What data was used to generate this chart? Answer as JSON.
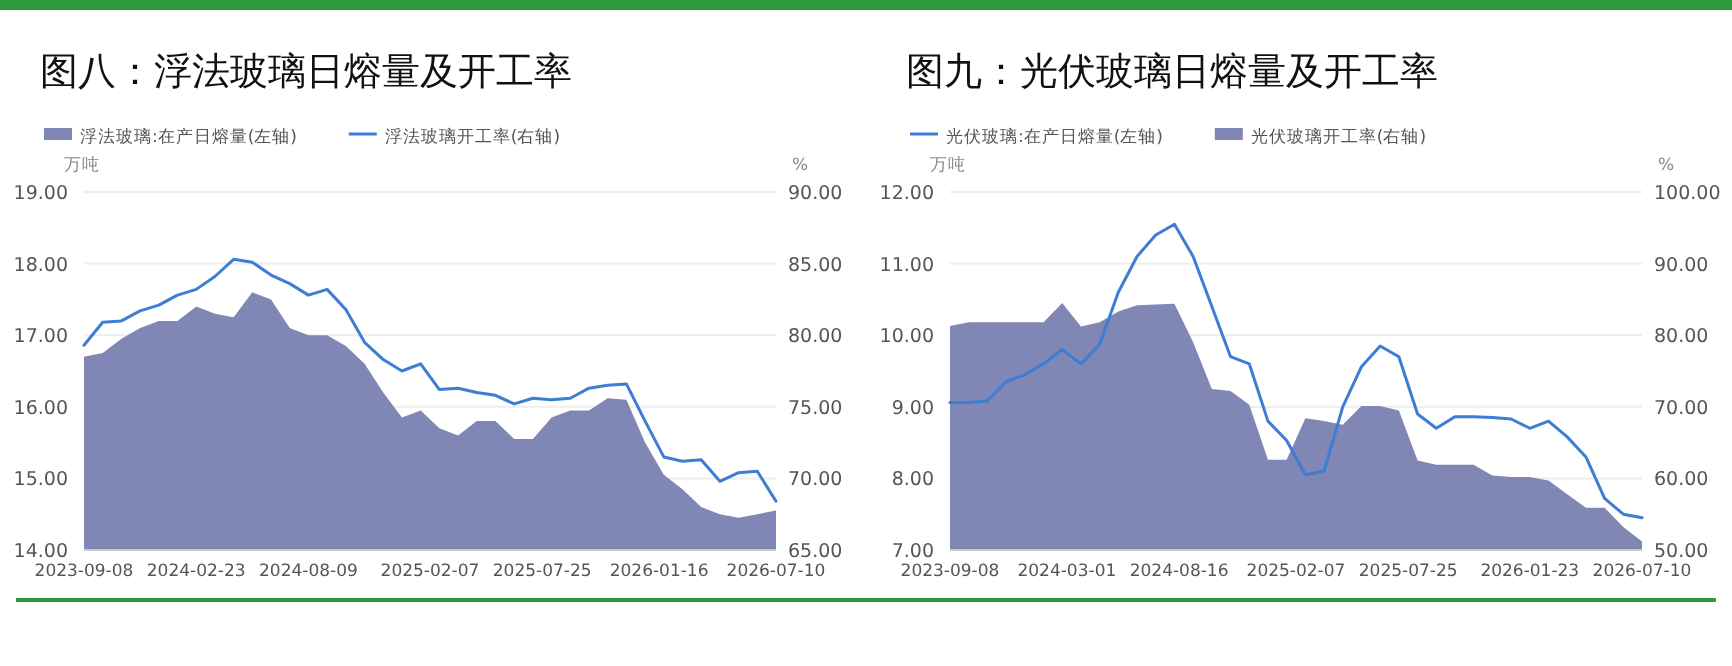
{
  "chart_data": [
    {
      "type": "area",
      "title": "图八：浮法玻璃日熔量及开工率",
      "ylabel": "万吨",
      "y2label": "%",
      "x": [
        "2023-09-08",
        "2023-10-06",
        "2023-11-03",
        "2023-12-01",
        "2023-12-29",
        "2024-01-26",
        "2024-02-23",
        "2024-03-22",
        "2024-04-19",
        "2024-05-17",
        "2024-06-14",
        "2024-07-12",
        "2024-08-09",
        "2024-09-06",
        "2024-10-04",
        "2024-11-01",
        "2024-11-29",
        "2024-12-27",
        "2025-01-24",
        "2025-02-21",
        "2025-03-21",
        "2025-04-18",
        "2025-05-16",
        "2025-06-13",
        "2025-07-11",
        "2025-08-08",
        "2025-09-05",
        "2025-10-03",
        "2025-10-31",
        "2025-11-28",
        "2025-12-26",
        "2026-01-23",
        "2026-02-20",
        "2026-03-20",
        "2026-04-17",
        "2026-05-15",
        "2026-06-12",
        "2026-07-10"
      ],
      "series": [
        {
          "name": "浮法玻璃:在产日熔量(左轴)",
          "axis": "y",
          "color": "#8087b5",
          "values": [
            16.7,
            16.75,
            16.95,
            17.1,
            17.2,
            17.2,
            17.4,
            17.3,
            17.25,
            17.6,
            17.5,
            17.1,
            17.0,
            17.0,
            16.85,
            16.6,
            16.2,
            15.85,
            15.95,
            15.7,
            15.6,
            15.8,
            15.8,
            15.55,
            15.55,
            15.85,
            15.95,
            15.95,
            16.12,
            16.1,
            15.5,
            15.05,
            14.85,
            14.6,
            14.5,
            14.45,
            14.5,
            14.55
          ]
        },
        {
          "name": "浮法玻璃开工率(右轴)",
          "type": "line",
          "axis": "y2",
          "color": "#3d7dd4",
          "values": [
            79.3,
            80.9,
            81.0,
            81.7,
            82.1,
            82.8,
            83.2,
            84.1,
            85.3,
            85.1,
            84.2,
            83.6,
            82.8,
            83.2,
            81.8,
            79.5,
            78.3,
            77.5,
            78.0,
            76.2,
            76.3,
            76.0,
            75.8,
            75.2,
            75.6,
            75.5,
            75.6,
            76.3,
            76.5,
            76.6,
            74.0,
            71.5,
            71.2,
            71.3,
            69.8,
            70.4,
            70.5,
            68.4
          ]
        }
      ],
      "xlim": [
        "2023-09-08",
        "2026-07-10"
      ],
      "xticks": [
        "2023-09-08",
        "2024-02-23",
        "2024-08-09",
        "2025-02-07",
        "2025-07-25",
        "2026-01-16",
        "2026-07-10"
      ],
      "ylim": [
        14,
        19
      ],
      "yticks": [
        {
          "value": 14,
          "label": "14.00"
        },
        {
          "value": 15,
          "label": "15.00"
        },
        {
          "value": 16,
          "label": "16.00"
        },
        {
          "value": 17,
          "label": "17.00"
        },
        {
          "value": 18,
          "label": "18.00"
        },
        {
          "value": 19,
          "label": "19.00"
        }
      ],
      "y2lim": [
        65,
        90
      ],
      "y2ticks": [
        {
          "value": 65,
          "label": "65.00"
        },
        {
          "value": 70,
          "label": "70.00"
        },
        {
          "value": 75,
          "label": "75.00"
        },
        {
          "value": 80,
          "label": "80.00"
        },
        {
          "value": 85,
          "label": "85.00"
        },
        {
          "value": 90,
          "label": "90.00"
        }
      ],
      "grid": "y",
      "legend": "top left"
    },
    {
      "type": "area",
      "title": "图九：光伏玻璃日熔量及开工率",
      "ylabel": "万吨",
      "y2label": "%",
      "x": [
        "2023-09-08",
        "2023-10-06",
        "2023-11-03",
        "2023-12-01",
        "2023-12-29",
        "2024-01-26",
        "2024-02-23",
        "2024-03-22",
        "2024-04-19",
        "2024-05-17",
        "2024-06-14",
        "2024-07-12",
        "2024-08-09",
        "2024-09-06",
        "2024-10-04",
        "2024-11-01",
        "2024-11-29",
        "2024-12-27",
        "2025-01-24",
        "2025-02-21",
        "2025-03-21",
        "2025-04-18",
        "2025-05-16",
        "2025-06-13",
        "2025-07-11",
        "2025-08-08",
        "2025-09-05",
        "2025-10-03",
        "2025-10-31",
        "2025-11-28",
        "2025-12-26",
        "2026-01-23",
        "2026-02-20",
        "2026-03-20",
        "2026-04-17",
        "2026-05-15",
        "2026-06-12",
        "2026-07-10"
      ],
      "series": [
        {
          "name": "光伏玻璃:在产日熔量(左轴)",
          "type": "line",
          "axis": "y",
          "color": "#3d7dd4",
          "values": [
            9.06,
            9.06,
            9.08,
            9.35,
            9.45,
            9.6,
            9.8,
            9.6,
            9.87,
            10.6,
            11.1,
            11.4,
            11.55,
            11.1,
            10.4,
            9.7,
            9.6,
            8.8,
            8.53,
            8.05,
            8.1,
            9.0,
            9.56,
            9.85,
            9.7,
            8.9,
            8.7,
            8.86,
            8.86,
            8.85,
            8.83,
            8.7,
            8.8,
            8.58,
            8.3,
            7.72,
            7.5,
            7.45
          ]
        },
        {
          "name": "光伏玻璃开工率(右轴)",
          "axis": "y2",
          "color": "#8087b5",
          "values": [
            81.3,
            81.8,
            81.8,
            81.8,
            81.8,
            81.8,
            84.5,
            81.2,
            81.8,
            83.3,
            84.2,
            84.3,
            84.4,
            79,
            72.5,
            72.2,
            70.3,
            62.6,
            62.6,
            68.4,
            68.0,
            67.5,
            70.1,
            70.1,
            69.5,
            62.5,
            61.9,
            61.9,
            61.9,
            60.4,
            60.2,
            60.2,
            59.7,
            57.8,
            55.9,
            55.9,
            53.2,
            51.2
          ]
        }
      ],
      "xlim": [
        "2023-09-08",
        "2026-07-10"
      ],
      "xticks": [
        "2023-09-08",
        "2024-03-01",
        "2024-08-16",
        "2025-02-07",
        "2025-07-25",
        "2026-01-23",
        "2026-07-10"
      ],
      "ylim": [
        7,
        12
      ],
      "yticks": [
        {
          "value": 7,
          "label": "7.00"
        },
        {
          "value": 8,
          "label": "8.00"
        },
        {
          "value": 9,
          "label": "9.00"
        },
        {
          "value": 10,
          "label": "10.00"
        },
        {
          "value": 11,
          "label": "11.00"
        },
        {
          "value": 12,
          "label": "12.00"
        }
      ],
      "y2lim": [
        50,
        100
      ],
      "y2ticks": [
        {
          "value": 50,
          "label": "50.00"
        },
        {
          "value": 60,
          "label": "60.00"
        },
        {
          "value": 70,
          "label": "70.00"
        },
        {
          "value": 80,
          "label": "80.00"
        },
        {
          "value": 90,
          "label": "90.00"
        },
        {
          "value": 100,
          "label": "100.00"
        }
      ],
      "grid": "y",
      "legend": "top left"
    }
  ]
}
